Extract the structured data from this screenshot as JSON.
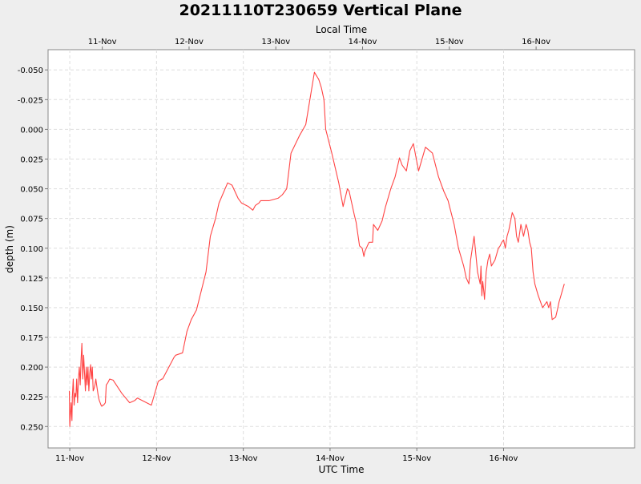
{
  "chart_data": {
    "type": "line",
    "title": "20211110T230659 Vertical Plane",
    "top_axis_label": "Local Time",
    "xlabel": "UTC Time",
    "ylabel": "depth (m)",
    "y_inverted": true,
    "ylim": [
      -0.067,
      0.268
    ],
    "yticks": [
      -0.05,
      -0.025,
      0.0,
      0.025,
      0.05,
      0.075,
      0.1,
      0.125,
      0.15,
      0.175,
      0.2,
      0.225,
      0.25
    ],
    "ytick_labels": [
      "-0.050",
      "-0.025",
      "0.000",
      "0.025",
      "0.050",
      "0.075",
      "0.100",
      "0.125",
      "0.150",
      "0.175",
      "0.200",
      "0.225",
      "0.250"
    ],
    "x_unit": "days since 11-Nov 00:00 UTC",
    "xlim": [
      -0.25,
      6.51
    ],
    "bottom_ticks": [
      {
        "x": 0,
        "label": "11-Nov"
      },
      {
        "x": 1,
        "label": "12-Nov"
      },
      {
        "x": 2,
        "label": "13-Nov"
      },
      {
        "x": 3,
        "label": "14-Nov"
      },
      {
        "x": 4,
        "label": "15-Nov"
      },
      {
        "x": 5,
        "label": "16-Nov"
      }
    ],
    "top_ticks": [
      {
        "x": 0.375,
        "label": "11-Nov"
      },
      {
        "x": 1.375,
        "label": "12-Nov"
      },
      {
        "x": 2.375,
        "label": "13-Nov"
      },
      {
        "x": 3.375,
        "label": "14-Nov"
      },
      {
        "x": 4.375,
        "label": "15-Nov"
      },
      {
        "x": 5.375,
        "label": "16-Nov"
      }
    ],
    "grid": true,
    "series": [
      {
        "name": "depth",
        "color": "#ff4444",
        "x": [
          -0.005,
          0.0,
          0.015,
          0.025,
          0.03,
          0.04,
          0.05,
          0.06,
          0.07,
          0.08,
          0.09,
          0.1,
          0.11,
          0.12,
          0.13,
          0.14,
          0.15,
          0.16,
          0.17,
          0.18,
          0.19,
          0.2,
          0.21,
          0.22,
          0.23,
          0.24,
          0.25,
          0.26,
          0.27,
          0.28,
          0.29,
          0.3,
          0.31,
          0.32,
          0.33,
          0.34,
          0.35,
          0.36,
          0.37,
          0.38,
          0.39,
          0.4,
          0.41,
          0.42,
          0.44,
          0.46,
          0.5,
          0.6,
          0.69,
          0.75,
          0.78,
          0.94,
          1.02,
          1.06,
          1.07,
          1.2,
          1.22,
          1.3,
          1.35,
          1.4,
          1.46,
          1.57,
          1.62,
          1.68,
          1.72,
          1.82,
          1.87,
          1.94,
          1.98,
          2.06,
          2.11,
          2.14,
          2.18,
          2.2,
          2.3,
          2.4,
          2.45,
          2.5,
          2.55,
          2.65,
          2.72,
          2.82,
          2.87,
          2.9,
          2.93,
          2.95,
          3.02,
          3.1,
          3.15,
          3.2,
          3.22,
          3.28,
          3.3,
          3.34,
          3.37,
          3.39,
          3.4,
          3.43,
          3.45,
          3.49,
          3.5,
          3.55,
          3.6,
          3.64,
          3.66,
          3.7,
          3.75,
          3.8,
          3.83,
          3.88,
          3.92,
          3.96,
          4.02,
          4.1,
          4.18,
          4.25,
          4.31,
          4.36,
          4.43,
          4.48,
          4.54,
          4.57,
          4.6,
          4.62,
          4.66,
          4.7,
          4.73,
          4.74,
          4.75,
          4.76,
          4.77,
          4.78,
          4.79,
          4.8,
          4.82,
          4.84,
          4.86,
          4.9,
          4.94,
          4.96,
          4.98,
          5.0,
          5.02,
          5.04,
          5.06,
          5.1,
          5.13,
          5.15,
          5.17,
          5.2,
          5.23,
          5.26,
          5.28,
          5.3,
          5.32,
          5.34,
          5.36,
          5.4,
          5.45,
          5.5,
          5.52,
          5.54,
          5.56,
          5.6,
          5.62,
          5.64,
          5.66,
          5.68,
          5.7
        ],
        "y": [
          0.22,
          0.25,
          0.23,
          0.245,
          0.225,
          0.21,
          0.232,
          0.222,
          0.225,
          0.21,
          0.23,
          0.21,
          0.2,
          0.215,
          0.195,
          0.18,
          0.21,
          0.19,
          0.205,
          0.22,
          0.2,
          0.215,
          0.2,
          0.22,
          0.205,
          0.198,
          0.21,
          0.2,
          0.22,
          0.218,
          0.215,
          0.21,
          0.215,
          0.22,
          0.225,
          0.228,
          0.23,
          0.232,
          0.233,
          0.232,
          0.232,
          0.231,
          0.23,
          0.215,
          0.213,
          0.21,
          0.211,
          0.222,
          0.23,
          0.228,
          0.226,
          0.232,
          0.212,
          0.21,
          0.21,
          0.192,
          0.19,
          0.188,
          0.17,
          0.16,
          0.152,
          0.12,
          0.09,
          0.075,
          0.062,
          0.045,
          0.047,
          0.058,
          0.062,
          0.065,
          0.068,
          0.064,
          0.062,
          0.06,
          0.06,
          0.058,
          0.055,
          0.05,
          0.02,
          0.005,
          -0.004,
          -0.048,
          -0.042,
          -0.035,
          -0.025,
          0.0,
          0.02,
          0.045,
          0.065,
          0.05,
          0.052,
          0.072,
          0.078,
          0.098,
          0.1,
          0.107,
          0.103,
          0.098,
          0.095,
          0.095,
          0.08,
          0.085,
          0.077,
          0.065,
          0.06,
          0.05,
          0.04,
          0.024,
          0.03,
          0.035,
          0.018,
          0.012,
          0.035,
          0.015,
          0.02,
          0.04,
          0.052,
          0.06,
          0.08,
          0.1,
          0.115,
          0.125,
          0.13,
          0.11,
          0.09,
          0.12,
          0.13,
          0.115,
          0.14,
          0.128,
          0.135,
          0.143,
          0.13,
          0.12,
          0.11,
          0.105,
          0.115,
          0.11,
          0.1,
          0.098,
          0.095,
          0.093,
          0.1,
          0.09,
          0.085,
          0.07,
          0.075,
          0.09,
          0.095,
          0.08,
          0.09,
          0.08,
          0.085,
          0.095,
          0.1,
          0.12,
          0.13,
          0.14,
          0.15,
          0.145,
          0.15,
          0.145,
          0.16,
          0.158,
          0.152,
          0.145,
          0.14,
          0.135,
          0.13
        ]
      }
    ]
  }
}
